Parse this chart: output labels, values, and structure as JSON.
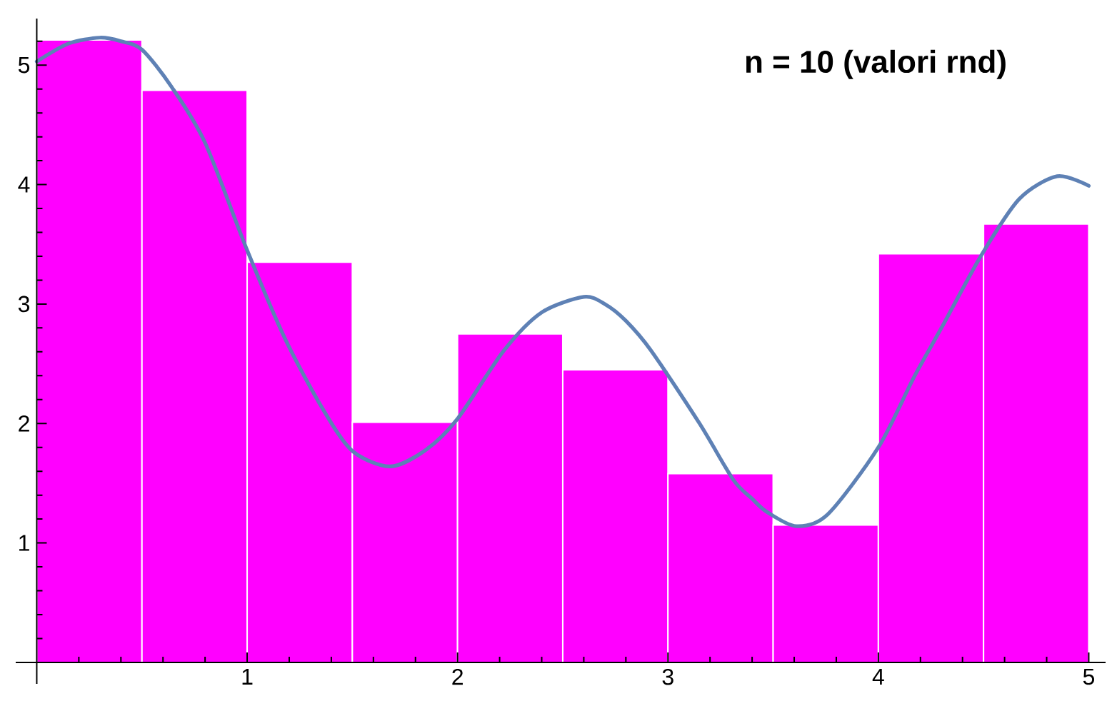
{
  "chart_data": {
    "type": "histogram",
    "title": "n = 10 (valori rnd)",
    "bins": [
      0,
      0.5,
      1,
      1.5,
      2,
      2.5,
      3,
      3.5,
      4,
      4.5,
      5
    ],
    "values": [
      5.21,
      4.79,
      3.35,
      2.01,
      2.75,
      2.45,
      1.58,
      1.15,
      3.42,
      3.67
    ],
    "color": "#ff00ff",
    "series": [
      {
        "type": "line",
        "color": "#5e81b5",
        "x": [
          0,
          0.15,
          0.3,
          0.4,
          0.5,
          0.64,
          0.8,
          1.0,
          1.18,
          1.36,
          1.5,
          1.68,
          1.85,
          2.0,
          2.22,
          2.4,
          2.6,
          2.7,
          2.8,
          2.92,
          3.15,
          3.31,
          3.4,
          3.47,
          3.61,
          3.76,
          4.0,
          4.17,
          4.3,
          4.49,
          4.67,
          4.85,
          5.0
        ],
        "values": [
          5.03,
          5.18,
          5.23,
          5.2,
          5.13,
          4.82,
          4.35,
          3.45,
          2.71,
          2.12,
          1.77,
          1.64,
          1.78,
          2.04,
          2.61,
          2.93,
          3.06,
          3.0,
          2.86,
          2.61,
          2.0,
          1.53,
          1.37,
          1.26,
          1.14,
          1.24,
          1.8,
          2.39,
          2.8,
          3.41,
          3.88,
          4.07,
          3.99
        ]
      }
    ],
    "xlim": [
      -0.1,
      5.08
    ],
    "ylim": [
      -0.18,
      5.39
    ],
    "xticks": [
      {
        "value": 0.2,
        "label": null
      },
      {
        "value": 0.4,
        "label": null
      },
      {
        "value": 0.6,
        "label": null
      },
      {
        "value": 0.8,
        "label": null
      },
      1,
      {
        "value": 1.2,
        "label": null
      },
      {
        "value": 1.4,
        "label": null
      },
      {
        "value": 1.6,
        "label": null
      },
      {
        "value": 1.8,
        "label": null
      },
      2,
      {
        "value": 2.2,
        "label": null
      },
      {
        "value": 2.4,
        "label": null
      },
      {
        "value": 2.6,
        "label": null
      },
      {
        "value": 2.8,
        "label": null
      },
      3,
      {
        "value": 3.2,
        "label": null
      },
      {
        "value": 3.4,
        "label": null
      },
      {
        "value": 3.6,
        "label": null
      },
      {
        "value": 3.8,
        "label": null
      },
      4,
      {
        "value": 4.2,
        "label": null
      },
      {
        "value": 4.4,
        "label": null
      },
      {
        "value": 4.6,
        "label": null
      },
      {
        "value": 4.8,
        "label": null
      },
      5
    ],
    "yticks": [
      {
        "value": 0.2,
        "label": null
      },
      {
        "value": 0.4,
        "label": null
      },
      {
        "value": 0.6,
        "label": null
      },
      {
        "value": 0.8,
        "label": null
      },
      1,
      {
        "value": 1.2,
        "label": null
      },
      {
        "value": 1.4,
        "label": null
      },
      {
        "value": 1.6,
        "label": null
      },
      {
        "value": 1.8,
        "label": null
      },
      2,
      {
        "value": 2.2,
        "label": null
      },
      {
        "value": 2.4,
        "label": null
      },
      {
        "value": 2.6,
        "label": null
      },
      {
        "value": 2.8,
        "label": null
      },
      3,
      {
        "value": 3.2,
        "label": null
      },
      {
        "value": 3.4,
        "label": null
      },
      {
        "value": 3.6,
        "label": null
      },
      {
        "value": 3.8,
        "label": null
      },
      4,
      {
        "value": 4.2,
        "label": null
      },
      {
        "value": 4.4,
        "label": null
      },
      {
        "value": 4.6,
        "label": null
      },
      {
        "value": 4.8,
        "label": null
      },
      5,
      {
        "value": 5.2,
        "label": null
      }
    ]
  }
}
